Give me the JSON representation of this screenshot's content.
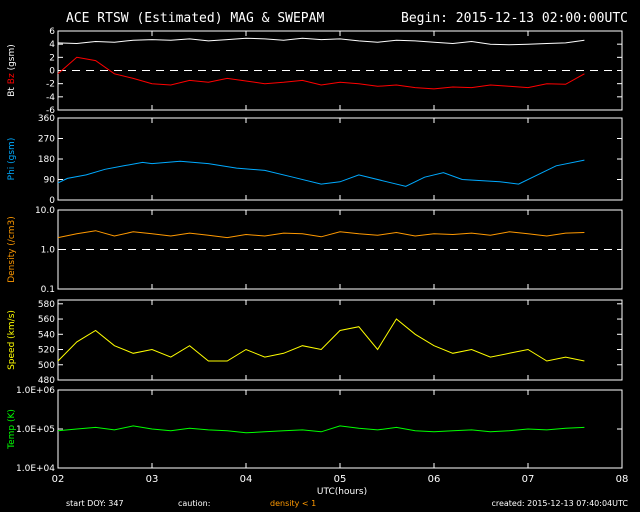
{
  "header": {
    "title": "ACE RTSW (Estimated) MAG & SWEPAM",
    "begin": "Begin: 2015-12-13 02:00:00UTC"
  },
  "footer": {
    "start_doy": "start DOY: 347",
    "caution": "caution:",
    "density_note": "density < 1",
    "created": "created: 2015-12-13 07:40:04UTC"
  },
  "colors": {
    "background": "#000000",
    "axes": "#ffffff",
    "bt": "#ffffff",
    "bz": "#ff0000",
    "phi": "#00aaff",
    "density": "#ff9900",
    "speed": "#ffff00",
    "temp": "#00ff00"
  },
  "chart_data": [
    {
      "type": "line",
      "panel": "mag",
      "ylabel_parts": [
        "Bt",
        "Bz",
        "(gsm)"
      ],
      "ylim": [
        -6,
        6
      ],
      "yticks": [
        "6",
        "4",
        "2",
        "0",
        "-2",
        "-4",
        "-6"
      ],
      "ref_line": 0,
      "series": [
        {
          "name": "Bt",
          "x": [
            2.0,
            2.2,
            2.4,
            2.6,
            2.8,
            3.0,
            3.2,
            3.4,
            3.6,
            3.8,
            4.0,
            4.2,
            4.4,
            4.6,
            4.8,
            5.0,
            5.2,
            5.4,
            5.6,
            5.8,
            6.0,
            6.2,
            6.4,
            6.6,
            6.8,
            7.0,
            7.2,
            7.4,
            7.6
          ],
          "values": [
            4.2,
            4.1,
            4.4,
            4.3,
            4.6,
            4.7,
            4.6,
            4.8,
            4.5,
            4.7,
            4.9,
            4.8,
            4.6,
            4.9,
            4.7,
            4.8,
            4.5,
            4.3,
            4.6,
            4.5,
            4.3,
            4.1,
            4.4,
            4.0,
            3.9,
            4.0,
            4.1,
            4.2,
            4.6
          ]
        },
        {
          "name": "Bz",
          "x": [
            2.0,
            2.2,
            2.4,
            2.6,
            2.8,
            3.0,
            3.2,
            3.4,
            3.6,
            3.8,
            4.0,
            4.2,
            4.4,
            4.6,
            4.8,
            5.0,
            5.2,
            5.4,
            5.6,
            5.8,
            6.0,
            6.2,
            6.4,
            6.6,
            6.8,
            7.0,
            7.2,
            7.4,
            7.6
          ],
          "values": [
            -0.5,
            2.0,
            1.5,
            -0.5,
            -1.2,
            -2.0,
            -2.2,
            -1.5,
            -1.8,
            -1.2,
            -1.6,
            -2.0,
            -1.8,
            -1.5,
            -2.2,
            -1.8,
            -2.0,
            -2.4,
            -2.2,
            -2.6,
            -2.8,
            -2.5,
            -2.6,
            -2.2,
            -2.4,
            -2.6,
            -2.0,
            -2.1,
            -0.5
          ]
        }
      ]
    },
    {
      "type": "line",
      "panel": "phi",
      "ylabel_parts": [
        "Phi",
        "(gsm)"
      ],
      "ylim": [
        0,
        360
      ],
      "yticks": [
        "360",
        "270",
        "180",
        "90",
        "0"
      ],
      "series": [
        {
          "name": "Phi",
          "x": [
            2.0,
            2.1,
            2.3,
            2.5,
            2.7,
            2.9,
            3.0,
            3.3,
            3.6,
            3.9,
            4.2,
            4.5,
            4.8,
            5.0,
            5.2,
            5.5,
            5.7,
            5.9,
            6.1,
            6.3,
            6.5,
            6.7,
            6.9,
            7.1,
            7.3,
            7.6
          ],
          "values": [
            75,
            95,
            110,
            135,
            150,
            165,
            160,
            170,
            160,
            140,
            130,
            100,
            70,
            80,
            110,
            80,
            60,
            100,
            120,
            90,
            85,
            80,
            70,
            110,
            150,
            175
          ]
        }
      ]
    },
    {
      "type": "line",
      "panel": "density",
      "ylabel_parts": [
        "Density",
        "(/cm3)"
      ],
      "yscale": "log",
      "ylim": [
        0.1,
        10
      ],
      "yticks": [
        "10.0",
        "1.0",
        "0.1"
      ],
      "ref_line": 1,
      "series": [
        {
          "name": "Density",
          "x": [
            2.0,
            2.2,
            2.4,
            2.6,
            2.8,
            3.0,
            3.2,
            3.4,
            3.6,
            3.8,
            4.0,
            4.2,
            4.4,
            4.6,
            4.8,
            5.0,
            5.2,
            5.4,
            5.6,
            5.8,
            6.0,
            6.2,
            6.4,
            6.6,
            6.8,
            7.0,
            7.2,
            7.4,
            7.6
          ],
          "values": [
            2.0,
            2.5,
            3.0,
            2.2,
            2.8,
            2.5,
            2.2,
            2.6,
            2.3,
            2.0,
            2.4,
            2.2,
            2.6,
            2.5,
            2.1,
            2.8,
            2.5,
            2.3,
            2.7,
            2.2,
            2.5,
            2.4,
            2.6,
            2.3,
            2.8,
            2.5,
            2.2,
            2.6,
            2.7
          ]
        }
      ]
    },
    {
      "type": "line",
      "panel": "speed",
      "ylabel_parts": [
        "Speed",
        "(km/s)"
      ],
      "ylim": [
        480,
        585
      ],
      "yticks": [
        "580",
        "560",
        "540",
        "520",
        "500",
        "480"
      ],
      "series": [
        {
          "name": "Speed",
          "x": [
            2.0,
            2.2,
            2.4,
            2.6,
            2.8,
            3.0,
            3.2,
            3.4,
            3.6,
            3.8,
            4.0,
            4.2,
            4.4,
            4.6,
            4.8,
            5.0,
            5.2,
            5.4,
            5.6,
            5.8,
            6.0,
            6.2,
            6.4,
            6.6,
            6.8,
            7.0,
            7.2,
            7.4,
            7.6
          ],
          "values": [
            505,
            530,
            545,
            525,
            515,
            520,
            510,
            525,
            505,
            505,
            520,
            510,
            515,
            525,
            520,
            545,
            550,
            520,
            560,
            540,
            525,
            515,
            520,
            510,
            515,
            520,
            505,
            510,
            505
          ]
        }
      ]
    },
    {
      "type": "line",
      "panel": "temp",
      "ylabel_parts": [
        "Temp",
        "(K)"
      ],
      "yscale": "log",
      "ylim": [
        10000,
        1000000
      ],
      "yticks": [
        "1.0E+06",
        "1.0E+05",
        "1.0E+04"
      ],
      "series": [
        {
          "name": "Temp",
          "x": [
            2.0,
            2.2,
            2.4,
            2.6,
            2.8,
            3.0,
            3.2,
            3.4,
            3.6,
            3.8,
            4.0,
            4.2,
            4.4,
            4.6,
            4.8,
            5.0,
            5.2,
            5.4,
            5.6,
            5.8,
            6.0,
            6.2,
            6.4,
            6.6,
            6.8,
            7.0,
            7.2,
            7.4,
            7.6
          ],
          "values": [
            90000,
            100000,
            110000,
            95000,
            120000,
            100000,
            90000,
            105000,
            95000,
            90000,
            80000,
            85000,
            90000,
            95000,
            85000,
            120000,
            105000,
            95000,
            110000,
            90000,
            85000,
            90000,
            95000,
            85000,
            90000,
            100000,
            95000,
            105000,
            110000
          ]
        }
      ]
    }
  ],
  "x_axis": {
    "label": "UTC(hours)",
    "xlim": [
      2,
      8
    ],
    "ticks": [
      "02",
      "03",
      "04",
      "05",
      "06",
      "07",
      "08"
    ]
  }
}
